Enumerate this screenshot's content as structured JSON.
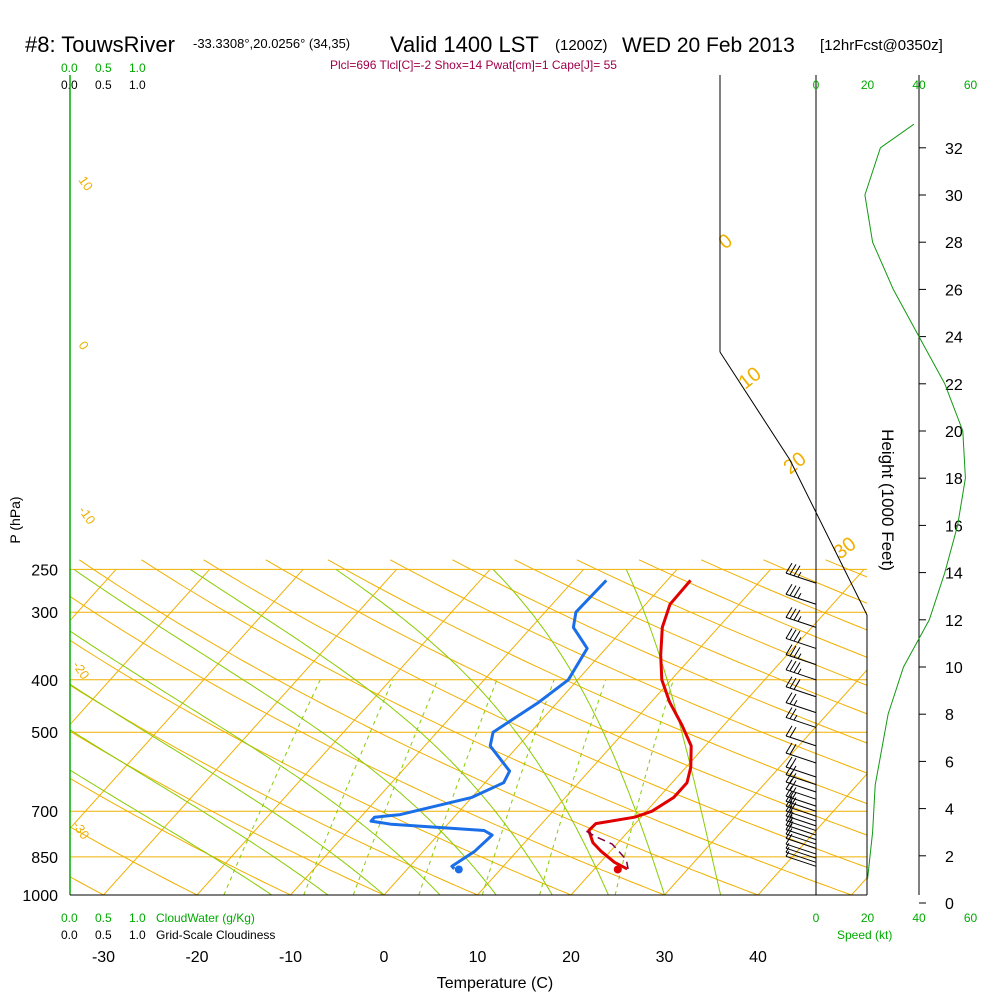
{
  "header": {
    "station": "#8: TouwsRiver",
    "coords": "-33.3308°,20.0256° (34,35)",
    "valid": "Valid 1400 LST",
    "zulu": "(1200Z)",
    "date": "WED 20 Feb 2013",
    "forecast": "[12hrFcst@0350z]"
  },
  "indices_line": "Plcl=696 Tlcl[C]=-2 Shox=14 Pwat[cm]=1 Cape[J]= 55",
  "colors": {
    "isotherm": "#f0b000",
    "dry_adiabat": "#f0b000",
    "moist_adiabat": "#88cc00",
    "mixing_ratio": "#88cc00",
    "temperature": "#e00000",
    "dewpoint": "#1a6ee8",
    "parcel": "#800040",
    "height_wind": "#119911",
    "wind_barb": "#000000",
    "green_text": "#00aa00"
  },
  "chart_data": {
    "type": "line",
    "title": "Valid 1400 LST (1200Z) WED 20 Feb 2013",
    "xlabel": "Temperature (C)",
    "ylabel": "P (hPa)",
    "y2label": "Height (1000 Feet)",
    "xticks": [
      "-30",
      "-20",
      "-10",
      "0",
      "10",
      "20",
      "30",
      "40"
    ],
    "yticks": [
      "250",
      "300",
      "400",
      "500",
      "700",
      "850",
      "1000"
    ],
    "height_ticks": [
      "0",
      "2",
      "4",
      "6",
      "8",
      "10",
      "12",
      "14",
      "16",
      "18",
      "20",
      "22",
      "24",
      "26",
      "28",
      "30",
      "32"
    ],
    "speed_ticks_top": [
      "0",
      "20",
      "40",
      "60"
    ],
    "speed_ticks_bottom": [
      "0",
      "20",
      "40",
      "60"
    ],
    "speed_label": "Speed (kt)",
    "cloud_scale_top_green": [
      "0.0",
      "0.5",
      "1.0"
    ],
    "cloud_scale_top_black": [
      "0.0",
      "0.5",
      "1.0"
    ],
    "cloud_scale_bottom_green": [
      "0.0",
      "0.5",
      "1.0"
    ],
    "cloud_scale_bottom_black": [
      "0.0",
      "0.5",
      "1.0"
    ],
    "cloudwater_label": "CloudWater (g/Kg)",
    "cloudiness_label": "Grid-Scale Cloudiness",
    "dry_adiabat_labels": [
      "10",
      "0",
      "-10",
      "-20",
      "-30"
    ],
    "moist_adiabat_labels": [
      "0",
      "10",
      "20",
      "30"
    ],
    "mixing_ratio_labels": [
      "1",
      "2",
      "3",
      "5",
      "8",
      "12",
      "20"
    ],
    "xlim": [
      -33.5,
      47
    ],
    "ylim": [
      250,
      1000
    ],
    "series": [
      {
        "name": "Temperature",
        "values": [
          [
            2.5,
            262
          ],
          [
            2.6,
            290
          ],
          [
            4.0,
            320
          ],
          [
            6.5,
            360
          ],
          [
            9.0,
            400
          ],
          [
            12.0,
            440
          ],
          [
            15.5,
            485
          ],
          [
            18.5,
            530
          ],
          [
            20.5,
            580
          ],
          [
            21.6,
            620
          ],
          [
            21.6,
            660
          ],
          [
            20.6,
            700
          ],
          [
            19.3,
            718
          ],
          [
            15.8,
            738
          ],
          [
            15.7,
            760
          ],
          [
            17.3,
            800
          ],
          [
            19.0,
            830
          ],
          [
            21.5,
            870
          ],
          [
            23.5,
            895
          ]
        ]
      },
      {
        "name": "Dewpoint",
        "values": [
          [
            -6.5,
            262
          ],
          [
            -6.7,
            300
          ],
          [
            -5.5,
            320
          ],
          [
            -2.0,
            350
          ],
          [
            -1.0,
            400
          ],
          [
            -2.0,
            440
          ],
          [
            -4.0,
            500
          ],
          [
            -3.0,
            530
          ],
          [
            1.5,
            590
          ],
          [
            2.0,
            620
          ],
          [
            0.0,
            660
          ],
          [
            -6.0,
            710
          ],
          [
            -8.5,
            718
          ],
          [
            -8.5,
            730
          ],
          [
            -6.0,
            740
          ],
          [
            4.5,
            760
          ],
          [
            5.8,
            775
          ],
          [
            5.5,
            830
          ],
          [
            4.5,
            885
          ],
          [
            5.0,
            895
          ]
        ]
      },
      {
        "name": "Parcel",
        "values": [
          [
            15.5,
            762
          ],
          [
            17.0,
            780
          ],
          [
            19.5,
            805
          ],
          [
            22.5,
            860
          ],
          [
            23.6,
            895
          ]
        ]
      }
    ],
    "surface_points": [
      {
        "name": "surface temperature",
        "temp": 25,
        "p": 897
      },
      {
        "name": "surface dewpoint",
        "temp": 8,
        "p": 897
      }
    ],
    "height_profile": [
      [
        20,
        1
      ],
      [
        22,
        3
      ],
      [
        23,
        5
      ],
      [
        28,
        8
      ],
      [
        34,
        10
      ],
      [
        44,
        12
      ],
      [
        50,
        14
      ],
      [
        55,
        16
      ],
      [
        58,
        18
      ],
      [
        57,
        20
      ],
      [
        50,
        22
      ],
      [
        40,
        24
      ],
      [
        30,
        26
      ],
      [
        22,
        28
      ],
      [
        19,
        30
      ],
      [
        25,
        32
      ],
      [
        38,
        33
      ]
    ],
    "wind_barbs": [
      {
        "p": 265,
        "speed_kt": 35
      },
      {
        "p": 290,
        "speed_kt": 35
      },
      {
        "p": 320,
        "speed_kt": 35
      },
      {
        "p": 350,
        "speed_kt": 35
      },
      {
        "p": 375,
        "speed_kt": 35
      },
      {
        "p": 400,
        "speed_kt": 35
      },
      {
        "p": 430,
        "speed_kt": 30
      },
      {
        "p": 460,
        "speed_kt": 25
      },
      {
        "p": 490,
        "speed_kt": 25
      },
      {
        "p": 530,
        "speed_kt": 20
      },
      {
        "p": 570,
        "speed_kt": 20
      },
      {
        "p": 605,
        "speed_kt": 20
      },
      {
        "p": 625,
        "speed_kt": 20
      },
      {
        "p": 645,
        "speed_kt": 20
      },
      {
        "p": 665,
        "speed_kt": 20
      },
      {
        "p": 685,
        "speed_kt": 20
      },
      {
        "p": 700,
        "speed_kt": 20
      },
      {
        "p": 715,
        "speed_kt": 20
      },
      {
        "p": 730,
        "speed_kt": 20
      },
      {
        "p": 745,
        "speed_kt": 15
      },
      {
        "p": 760,
        "speed_kt": 15
      },
      {
        "p": 775,
        "speed_kt": 15
      },
      {
        "p": 790,
        "speed_kt": 10
      },
      {
        "p": 805,
        "speed_kt": 10
      },
      {
        "p": 820,
        "speed_kt": 10
      },
      {
        "p": 840,
        "speed_kt": 10
      },
      {
        "p": 855,
        "speed_kt": 5
      },
      {
        "p": 870,
        "speed_kt": 5
      },
      {
        "p": 885,
        "speed_kt": 5
      }
    ],
    "grid": true,
    "legend": "none"
  }
}
